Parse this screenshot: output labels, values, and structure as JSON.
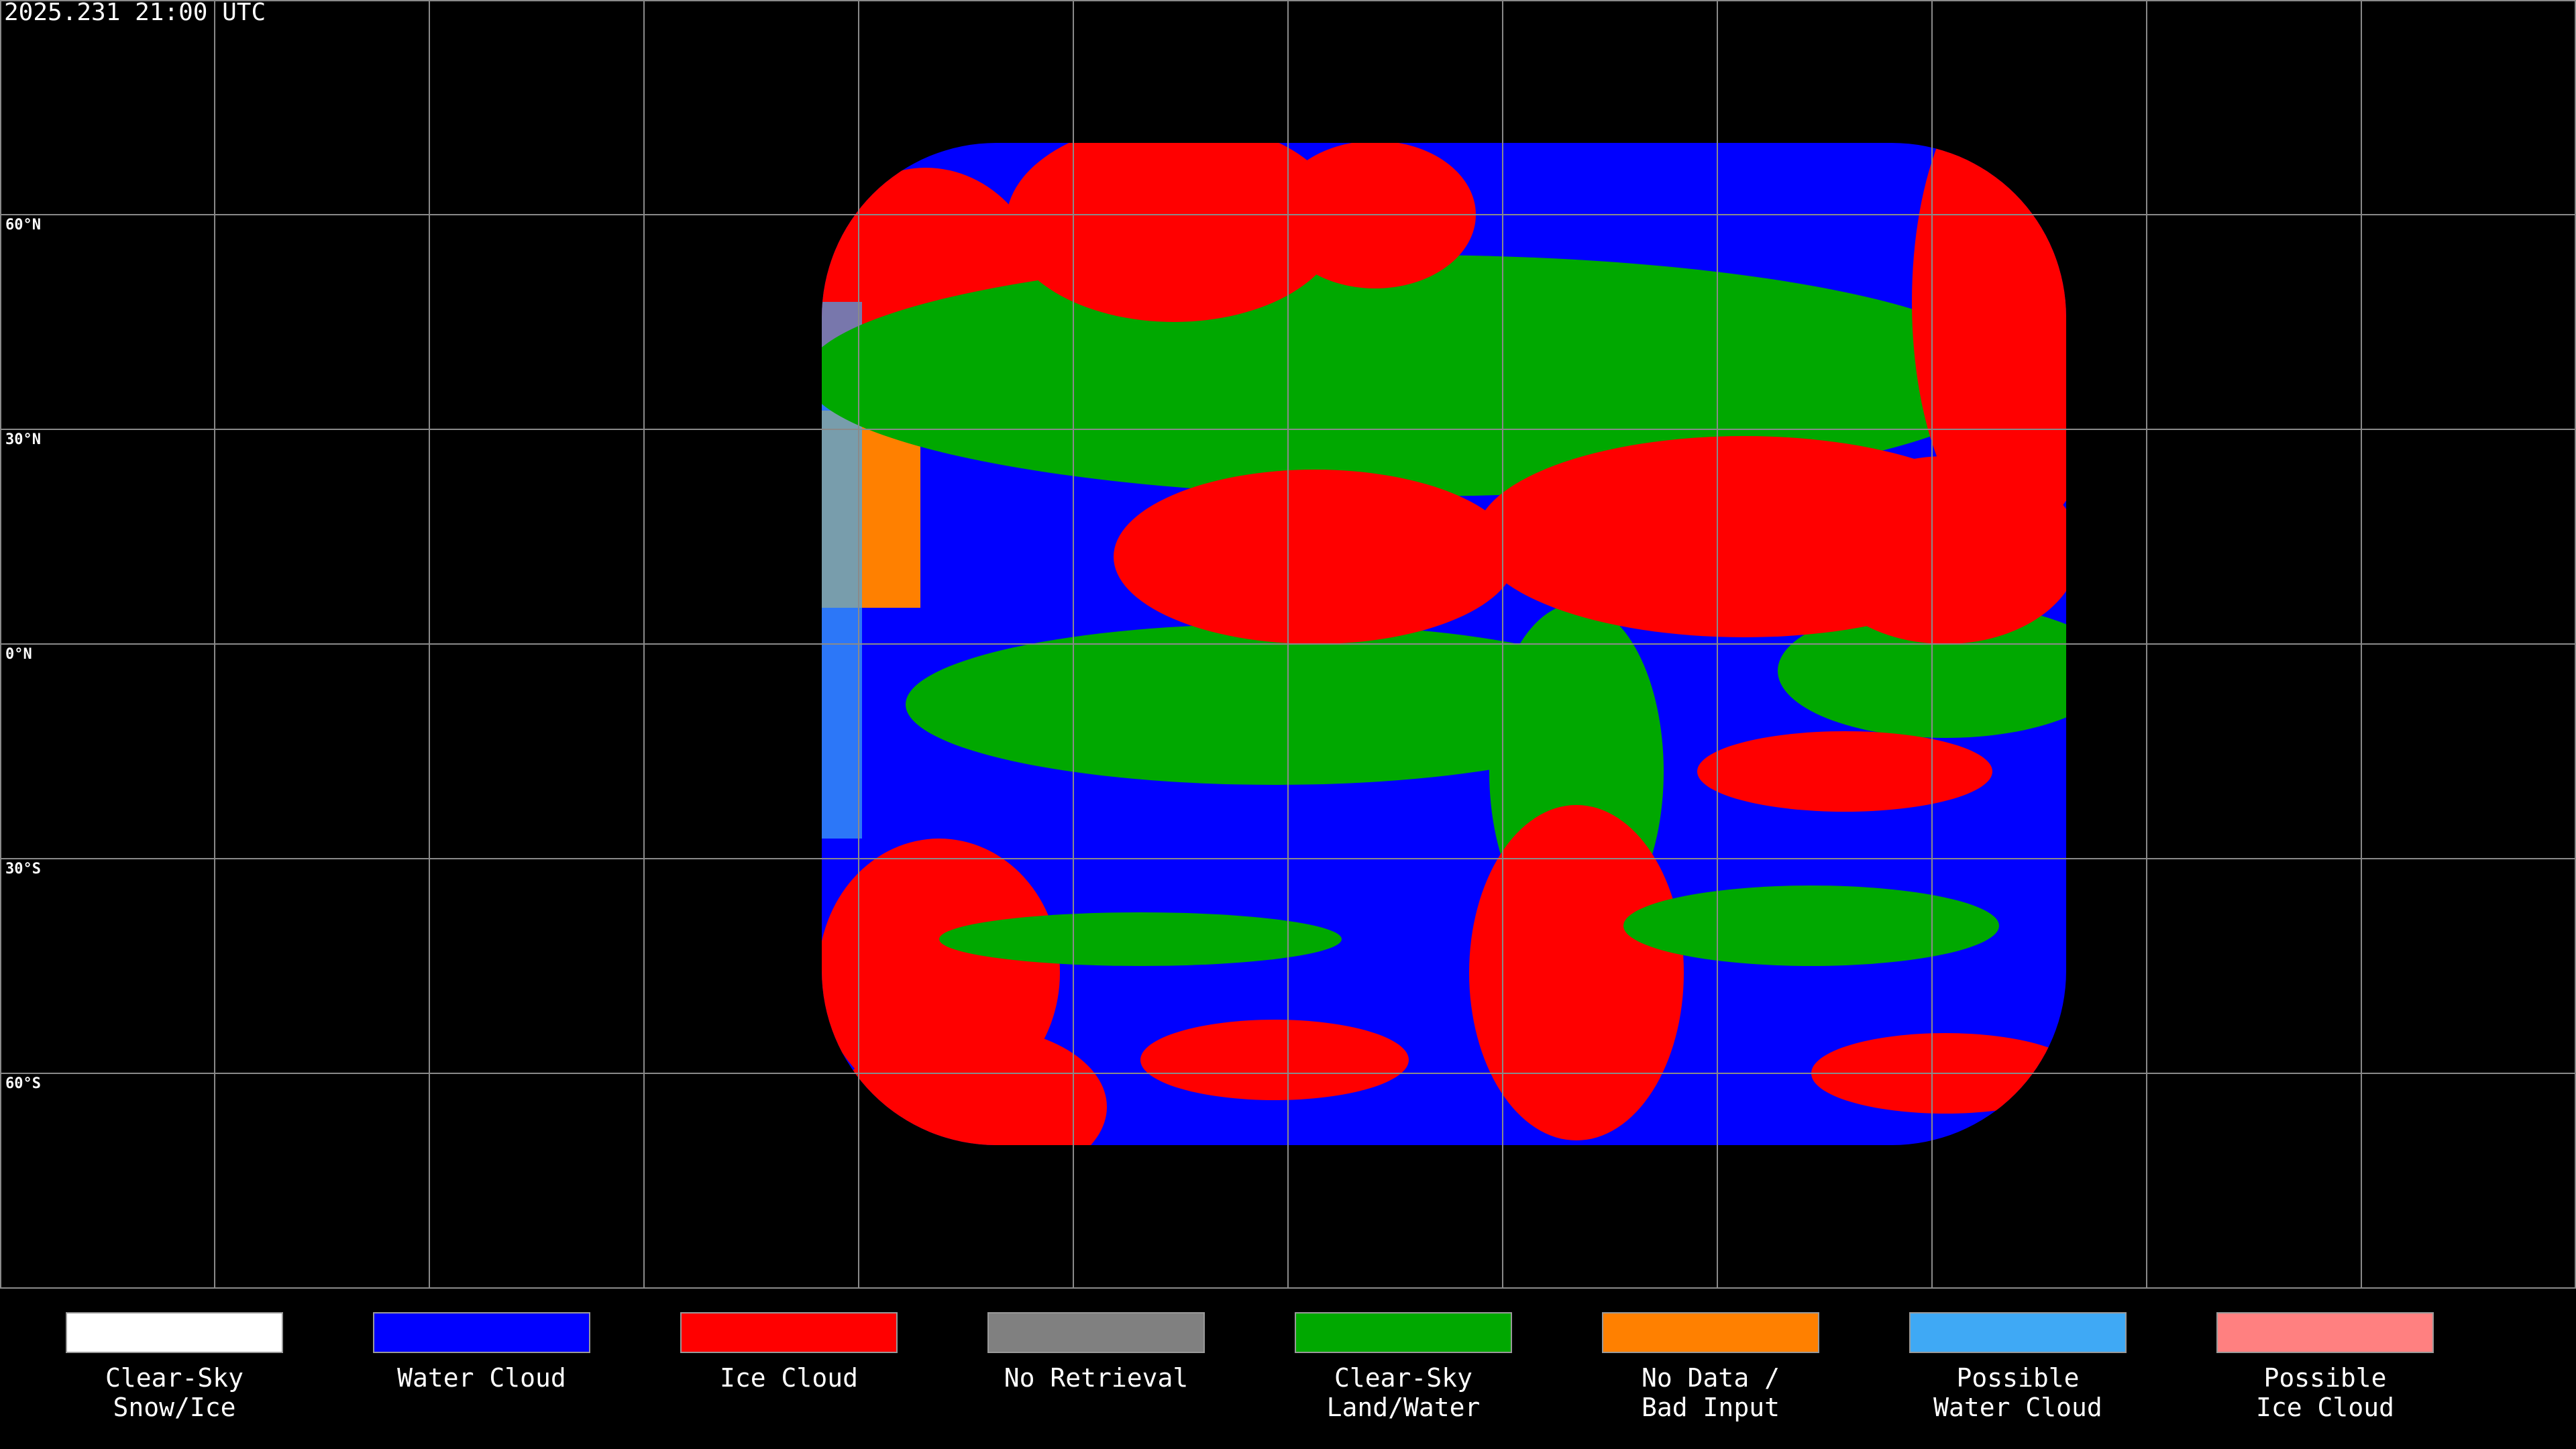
{
  "header": {
    "timestamp": "2025.231 21:00 UTC"
  },
  "map": {
    "latitude_labels": [
      "60°N",
      "30°N",
      "0°N",
      "30°S",
      "60°S"
    ]
  },
  "legend": {
    "items": [
      {
        "label": [
          "Clear-Sky",
          "Snow/Ice"
        ],
        "color": "#ffffff"
      },
      {
        "label": [
          "Water Cloud"
        ],
        "color": "#0000ff"
      },
      {
        "label": [
          "Ice Cloud"
        ],
        "color": "#ff0000"
      },
      {
        "label": [
          "No Retrieval"
        ],
        "color": "#808080"
      },
      {
        "label": [
          "Clear-Sky",
          "Land/Water"
        ],
        "color": "#00a800"
      },
      {
        "label": [
          "No Data /",
          "Bad Input"
        ],
        "color": "#ff8000"
      },
      {
        "label": [
          "Possible",
          "Water Cloud"
        ],
        "color": "#3fa9f5"
      },
      {
        "label": [
          "Possible",
          "Ice Cloud"
        ],
        "color": "#ff8080"
      }
    ]
  }
}
